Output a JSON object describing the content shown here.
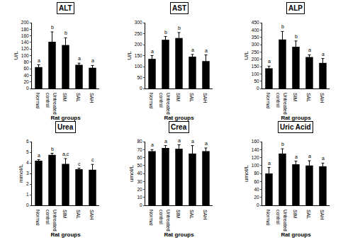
{
  "chart_data": [
    {
      "type": "bar",
      "title": "ALT",
      "x_label": "Rat groups",
      "y_label": "U/L",
      "categories": [
        "Normal",
        "Untreated control",
        "SIM",
        "SAL",
        "SAH"
      ],
      "values": [
        65,
        142,
        132,
        72,
        63
      ],
      "errors": [
        7,
        30,
        22,
        5,
        7
      ],
      "letters": [
        "a",
        "b",
        "b",
        "a",
        "a"
      ],
      "color": "#000000",
      "ylim": [
        0,
        200
      ],
      "yticks": [
        0,
        20,
        40,
        60,
        80,
        100,
        120,
        140,
        160,
        180,
        200
      ],
      "grid": false
    },
    {
      "type": "bar",
      "title": "AST",
      "x_label": "Rat groups",
      "y_label": "U/L",
      "categories": [
        "Normal",
        "Untreated control",
        "SIM",
        "SAL",
        "SAH"
      ],
      "values": [
        135,
        222,
        230,
        145,
        125
      ],
      "errors": [
        15,
        15,
        25,
        10,
        28
      ],
      "letters": [
        "a",
        "b",
        "b",
        "a",
        "a"
      ],
      "color": "#000000",
      "ylim": [
        0,
        300
      ],
      "yticks": [
        0,
        50,
        100,
        150,
        200,
        250,
        300
      ],
      "grid": false
    },
    {
      "type": "bar",
      "title": "ALP",
      "x_label": "Rat groups",
      "y_label": "U/L",
      "categories": [
        "Normal",
        "Untreated control",
        "SIM",
        "SAL",
        "SAH"
      ],
      "values": [
        138,
        335,
        285,
        215,
        175
      ],
      "errors": [
        15,
        55,
        40,
        15,
        30
      ],
      "letters": [
        "a",
        "b",
        "b",
        "a",
        "a"
      ],
      "color": "#000000",
      "ylim": [
        0,
        450
      ],
      "yticks": [
        0,
        50,
        100,
        150,
        200,
        250,
        300,
        350,
        400,
        450
      ],
      "grid": false
    },
    {
      "type": "bar",
      "title": "Urea",
      "x_label": "Rat groups",
      "y_label": "mmol/L",
      "categories": [
        "Normal",
        "Untreated control",
        "SIM",
        "SAL",
        "SAH"
      ],
      "values": [
        4.2,
        4.75,
        3.9,
        3.4,
        3.35
      ],
      "errors": [
        0.1,
        0.15,
        0.5,
        0.1,
        0.5
      ],
      "letters": [
        "a",
        "b",
        "a,c",
        "c",
        "c"
      ],
      "color": "#000000",
      "ylim": [
        0,
        6
      ],
      "yticks": [
        0,
        1,
        2,
        3,
        4,
        5,
        6
      ],
      "grid": false
    },
    {
      "type": "bar",
      "title": "Crea",
      "x_label": "Rat groups",
      "y_label": "umol/L",
      "categories": [
        "Normal",
        "Untreated control",
        "SIM",
        "SAL",
        "SAH"
      ],
      "values": [
        68,
        72,
        71,
        65,
        68
      ],
      "errors": [
        2,
        3,
        5,
        10,
        4
      ],
      "letters": [
        "a",
        "a",
        "a",
        "a",
        "a"
      ],
      "color": "#000000",
      "ylim": [
        0,
        80
      ],
      "yticks": [
        0,
        10,
        20,
        30,
        40,
        50,
        60,
        70,
        80
      ],
      "grid": false
    },
    {
      "type": "bar",
      "title": "Uric Acid",
      "x_label": "Rat groups",
      "y_label": "umol/L",
      "categories": [
        "Normal",
        "Untreated control",
        "SIM",
        "SAL",
        "SAH"
      ],
      "values": [
        80,
        130,
        103,
        100,
        98
      ],
      "errors": [
        15,
        12,
        8,
        12,
        8
      ],
      "letters": [
        "a",
        "b",
        "a",
        "a",
        "a"
      ],
      "color": "#000000",
      "ylim": [
        0,
        160
      ],
      "yticks": [
        0,
        20,
        40,
        60,
        80,
        100,
        120,
        140,
        160
      ],
      "grid": false
    }
  ]
}
